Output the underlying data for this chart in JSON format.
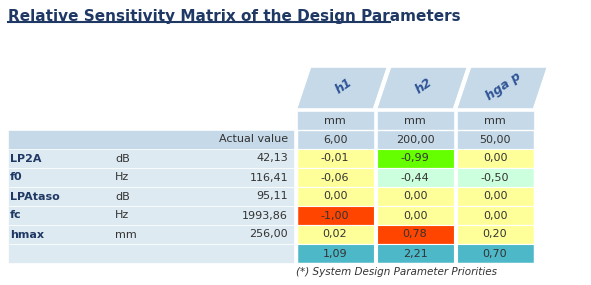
{
  "title": "Relative Sensitivity Matrix of the Design Parameters",
  "title_color": "#1F3864",
  "col_headers": [
    "h1",
    "h2",
    "hga p"
  ],
  "col_units": [
    "mm",
    "mm",
    "mm"
  ],
  "col_actual": [
    "6,00",
    "200,00",
    "50,00"
  ],
  "row_labels": [
    "LP2A",
    "f0",
    "LPAtaso",
    "fc",
    "hmax"
  ],
  "row_units": [
    "dB",
    "Hz",
    "dB",
    "Hz",
    "mm"
  ],
  "row_values": [
    "42,13",
    "116,41",
    "95,11",
    "1993,86",
    "256,00"
  ],
  "matrix_values": [
    [
      "-0,01",
      "-0,99",
      "0,00"
    ],
    [
      "-0,06",
      "-0,44",
      "-0,50"
    ],
    [
      "0,00",
      "0,00",
      "0,00"
    ],
    [
      "-1,00",
      "0,00",
      "0,00"
    ],
    [
      "0,02",
      "0,78",
      "0,20"
    ]
  ],
  "sum_row": [
    "1,09",
    "2,21",
    "0,70"
  ],
  "matrix_colors": [
    [
      "#FFFF99",
      "#66FF00",
      "#FFFF99"
    ],
    [
      "#FFFF99",
      "#CCFFDD",
      "#CCFFDD"
    ],
    [
      "#FFFF99",
      "#FFFF99",
      "#FFFF99"
    ],
    [
      "#FF4500",
      "#FFFF99",
      "#FFFF99"
    ],
    [
      "#FFFF99",
      "#FF4500",
      "#FFFF99"
    ]
  ],
  "sum_row_color": "#4DB8C8",
  "header_bg": "#C5D9E8",
  "row_bg_light": "#DEEAF1",
  "row_bg_medium": "#C5D9E8",
  "footer_note": "(*) System Design Parameter Priorities",
  "actual_value_label": "Actual value",
  "underline_color": "#1F3864"
}
